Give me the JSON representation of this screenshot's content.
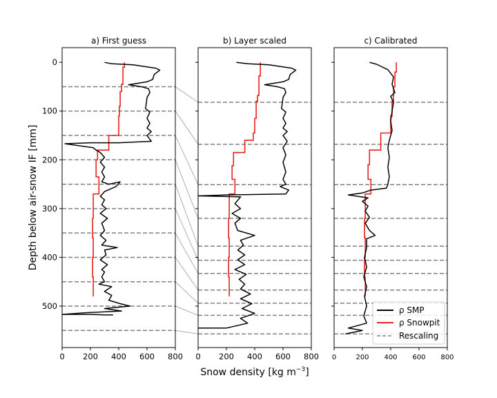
{
  "chart_data": {
    "type": "line",
    "ylabel": "Depth below air-snow IF [mm]",
    "xlabel": "Snow density [kg m",
    "xlabel_sup": "−3",
    "xlabel_end": "]",
    "xlim": [
      0,
      800
    ],
    "ylim": [
      -30,
      585
    ],
    "y_inverted": true,
    "xticks": [
      "0",
      "200",
      "400",
      "600",
      "800"
    ],
    "yticks": [
      "0",
      "100",
      "200",
      "300",
      "400",
      "500"
    ],
    "colors": {
      "smp": "#000000",
      "snowpit": "#e8211c",
      "rescaling": "#808080",
      "connector": "#9a9a9a"
    },
    "legend": {
      "placement": "lower-right of panel c",
      "entries": [
        {
          "label": "ρ SMP",
          "color": "#000000",
          "dash": "solid"
        },
        {
          "label": "ρ Snowpit",
          "color": "#e8211c",
          "dash": "solid"
        },
        {
          "label": "Rescaling",
          "color": "#808080",
          "dash": "dashed"
        }
      ]
    },
    "panels": [
      {
        "title": "a) First guess",
        "rescaling_depths": [
          50,
          100,
          150,
          200,
          250,
          300,
          350,
          400,
          450,
          500,
          550
        ],
        "smp": [
          [
            300,
            0
          ],
          [
            350,
            3
          ],
          [
            500,
            5
          ],
          [
            660,
            12
          ],
          [
            690,
            16
          ],
          [
            650,
            25
          ],
          [
            640,
            35
          ],
          [
            600,
            40
          ],
          [
            470,
            46
          ],
          [
            560,
            50
          ],
          [
            610,
            54
          ],
          [
            620,
            62
          ],
          [
            600,
            72
          ],
          [
            590,
            95
          ],
          [
            620,
            102
          ],
          [
            600,
            115
          ],
          [
            620,
            125
          ],
          [
            600,
            135
          ],
          [
            630,
            142
          ],
          [
            600,
            150
          ],
          [
            620,
            158
          ],
          [
            630,
            162
          ],
          [
            400,
            165
          ],
          [
            200,
            165
          ],
          [
            20,
            167
          ],
          [
            220,
            175
          ],
          [
            240,
            180
          ],
          [
            270,
            185
          ],
          [
            300,
            195
          ],
          [
            270,
            205
          ],
          [
            300,
            215
          ],
          [
            280,
            225
          ],
          [
            300,
            235
          ],
          [
            280,
            245
          ],
          [
            330,
            250
          ],
          [
            410,
            245
          ],
          [
            380,
            255
          ],
          [
            300,
            265
          ],
          [
            270,
            275
          ],
          [
            300,
            282
          ],
          [
            280,
            292
          ],
          [
            310,
            300
          ],
          [
            270,
            310
          ],
          [
            320,
            320
          ],
          [
            280,
            330
          ],
          [
            300,
            345
          ],
          [
            270,
            355
          ],
          [
            310,
            365
          ],
          [
            280,
            375
          ],
          [
            390,
            380
          ],
          [
            300,
            385
          ],
          [
            310,
            395
          ],
          [
            270,
            405
          ],
          [
            320,
            415
          ],
          [
            280,
            425
          ],
          [
            300,
            430
          ],
          [
            280,
            440
          ],
          [
            300,
            450
          ],
          [
            260,
            455
          ],
          [
            350,
            460
          ],
          [
            300,
            470
          ],
          [
            350,
            478
          ],
          [
            330,
            488
          ],
          [
            410,
            495
          ],
          [
            480,
            500
          ],
          [
            300,
            505
          ],
          [
            420,
            510
          ],
          [
            200,
            513
          ],
          [
            0,
            517
          ],
          [
            200,
            517
          ],
          [
            300,
            518
          ],
          [
            360,
            518
          ]
        ],
        "snowpit": [
          [
            440,
            0
          ],
          [
            440,
            10
          ],
          [
            430,
            10
          ],
          [
            430,
            45
          ],
          [
            420,
            45
          ],
          [
            420,
            60
          ],
          [
            410,
            60
          ],
          [
            410,
            90
          ],
          [
            405,
            90
          ],
          [
            405,
            110
          ],
          [
            400,
            110
          ],
          [
            400,
            150
          ],
          [
            330,
            150
          ],
          [
            330,
            180
          ],
          [
            250,
            180
          ],
          [
            250,
            200
          ],
          [
            240,
            200
          ],
          [
            240,
            235
          ],
          [
            260,
            235
          ],
          [
            260,
            270
          ],
          [
            220,
            270
          ],
          [
            220,
            320
          ],
          [
            215,
            320
          ],
          [
            215,
            360
          ],
          [
            220,
            360
          ],
          [
            220,
            400
          ],
          [
            215,
            400
          ],
          [
            215,
            440
          ],
          [
            220,
            440
          ],
          [
            220,
            480
          ]
        ]
      },
      {
        "title": "b) Layer scaled",
        "rescaling_depths": [
          82,
          168,
          251,
          320,
          377,
          406,
          433,
          467,
          494,
          519,
          557
        ],
        "smp": [
          [
            270,
            0
          ],
          [
            350,
            3
          ],
          [
            500,
            5
          ],
          [
            660,
            12
          ],
          [
            690,
            16
          ],
          [
            650,
            25
          ],
          [
            640,
            35
          ],
          [
            600,
            40
          ],
          [
            470,
            46
          ],
          [
            560,
            50
          ],
          [
            610,
            54
          ],
          [
            620,
            62
          ],
          [
            600,
            72
          ],
          [
            590,
            95
          ],
          [
            620,
            102
          ],
          [
            600,
            115
          ],
          [
            620,
            125
          ],
          [
            600,
            135
          ],
          [
            630,
            142
          ],
          [
            600,
            150
          ],
          [
            620,
            158
          ],
          [
            630,
            162
          ],
          [
            600,
            175
          ],
          [
            620,
            190
          ],
          [
            600,
            205
          ],
          [
            620,
            225
          ],
          [
            600,
            240
          ],
          [
            620,
            250
          ],
          [
            580,
            255
          ],
          [
            640,
            262
          ],
          [
            620,
            270
          ],
          [
            200,
            272
          ],
          [
            0,
            274
          ],
          [
            300,
            276
          ],
          [
            260,
            290
          ],
          [
            300,
            300
          ],
          [
            240,
            310
          ],
          [
            300,
            320
          ],
          [
            260,
            330
          ],
          [
            280,
            345
          ],
          [
            400,
            355
          ],
          [
            300,
            365
          ],
          [
            320,
            375
          ],
          [
            280,
            385
          ],
          [
            330,
            395
          ],
          [
            280,
            405
          ],
          [
            330,
            415
          ],
          [
            260,
            425
          ],
          [
            340,
            435
          ],
          [
            290,
            445
          ],
          [
            330,
            455
          ],
          [
            300,
            465
          ],
          [
            370,
            475
          ],
          [
            300,
            485
          ],
          [
            380,
            495
          ],
          [
            310,
            505
          ],
          [
            400,
            515
          ],
          [
            300,
            525
          ],
          [
            350,
            535
          ],
          [
            200,
            545
          ],
          [
            0,
            545
          ]
        ],
        "snowpit": [
          [
            440,
            0
          ],
          [
            440,
            28
          ],
          [
            430,
            28
          ],
          [
            430,
            68
          ],
          [
            420,
            68
          ],
          [
            420,
            80
          ],
          [
            410,
            80
          ],
          [
            410,
            115
          ],
          [
            400,
            115
          ],
          [
            400,
            145
          ],
          [
            390,
            145
          ],
          [
            390,
            160
          ],
          [
            330,
            160
          ],
          [
            330,
            185
          ],
          [
            250,
            185
          ],
          [
            250,
            212
          ],
          [
            240,
            212
          ],
          [
            240,
            240
          ],
          [
            260,
            240
          ],
          [
            260,
            270
          ],
          [
            220,
            270
          ],
          [
            220,
            320
          ],
          [
            215,
            320
          ],
          [
            215,
            360
          ],
          [
            220,
            360
          ],
          [
            220,
            400
          ],
          [
            215,
            400
          ],
          [
            215,
            440
          ],
          [
            220,
            440
          ],
          [
            220,
            480
          ]
        ]
      },
      {
        "title": "c) Calibrated",
        "rescaling_depths": [
          82,
          168,
          251,
          320,
          377,
          406,
          433,
          467,
          494,
          519,
          557
        ],
        "smp": [
          [
            250,
            0
          ],
          [
            300,
            4
          ],
          [
            380,
            15
          ],
          [
            420,
            30
          ],
          [
            410,
            45
          ],
          [
            430,
            62
          ],
          [
            400,
            70
          ],
          [
            420,
            82
          ],
          [
            410,
            100
          ],
          [
            400,
            120
          ],
          [
            410,
            140
          ],
          [
            390,
            160
          ],
          [
            380,
            175
          ],
          [
            390,
            195
          ],
          [
            380,
            215
          ],
          [
            390,
            235
          ],
          [
            380,
            250
          ],
          [
            370,
            258
          ],
          [
            260,
            262
          ],
          [
            200,
            268
          ],
          [
            100,
            272
          ],
          [
            240,
            278
          ],
          [
            200,
            285
          ],
          [
            240,
            295
          ],
          [
            220,
            305
          ],
          [
            250,
            318
          ],
          [
            220,
            330
          ],
          [
            250,
            345
          ],
          [
            290,
            355
          ],
          [
            230,
            362
          ],
          [
            230,
            380
          ],
          [
            215,
            400
          ],
          [
            230,
            420
          ],
          [
            210,
            440
          ],
          [
            230,
            460
          ],
          [
            215,
            480
          ],
          [
            230,
            500
          ],
          [
            210,
            520
          ],
          [
            230,
            535
          ],
          [
            100,
            545
          ],
          [
            200,
            550
          ],
          [
            80,
            557
          ]
        ],
        "snowpit": [
          [
            440,
            0
          ],
          [
            440,
            20
          ],
          [
            430,
            20
          ],
          [
            430,
            50
          ],
          [
            420,
            50
          ],
          [
            420,
            80
          ],
          [
            410,
            80
          ],
          [
            410,
            110
          ],
          [
            400,
            110
          ],
          [
            400,
            145
          ],
          [
            330,
            145
          ],
          [
            330,
            180
          ],
          [
            250,
            180
          ],
          [
            250,
            210
          ],
          [
            240,
            210
          ],
          [
            240,
            240
          ],
          [
            260,
            240
          ],
          [
            260,
            270
          ],
          [
            220,
            270
          ],
          [
            220,
            320
          ],
          [
            215,
            320
          ],
          [
            215,
            360
          ],
          [
            220,
            360
          ],
          [
            220,
            400
          ],
          [
            215,
            400
          ],
          [
            215,
            440
          ],
          [
            220,
            440
          ],
          [
            220,
            480
          ]
        ]
      }
    ]
  }
}
